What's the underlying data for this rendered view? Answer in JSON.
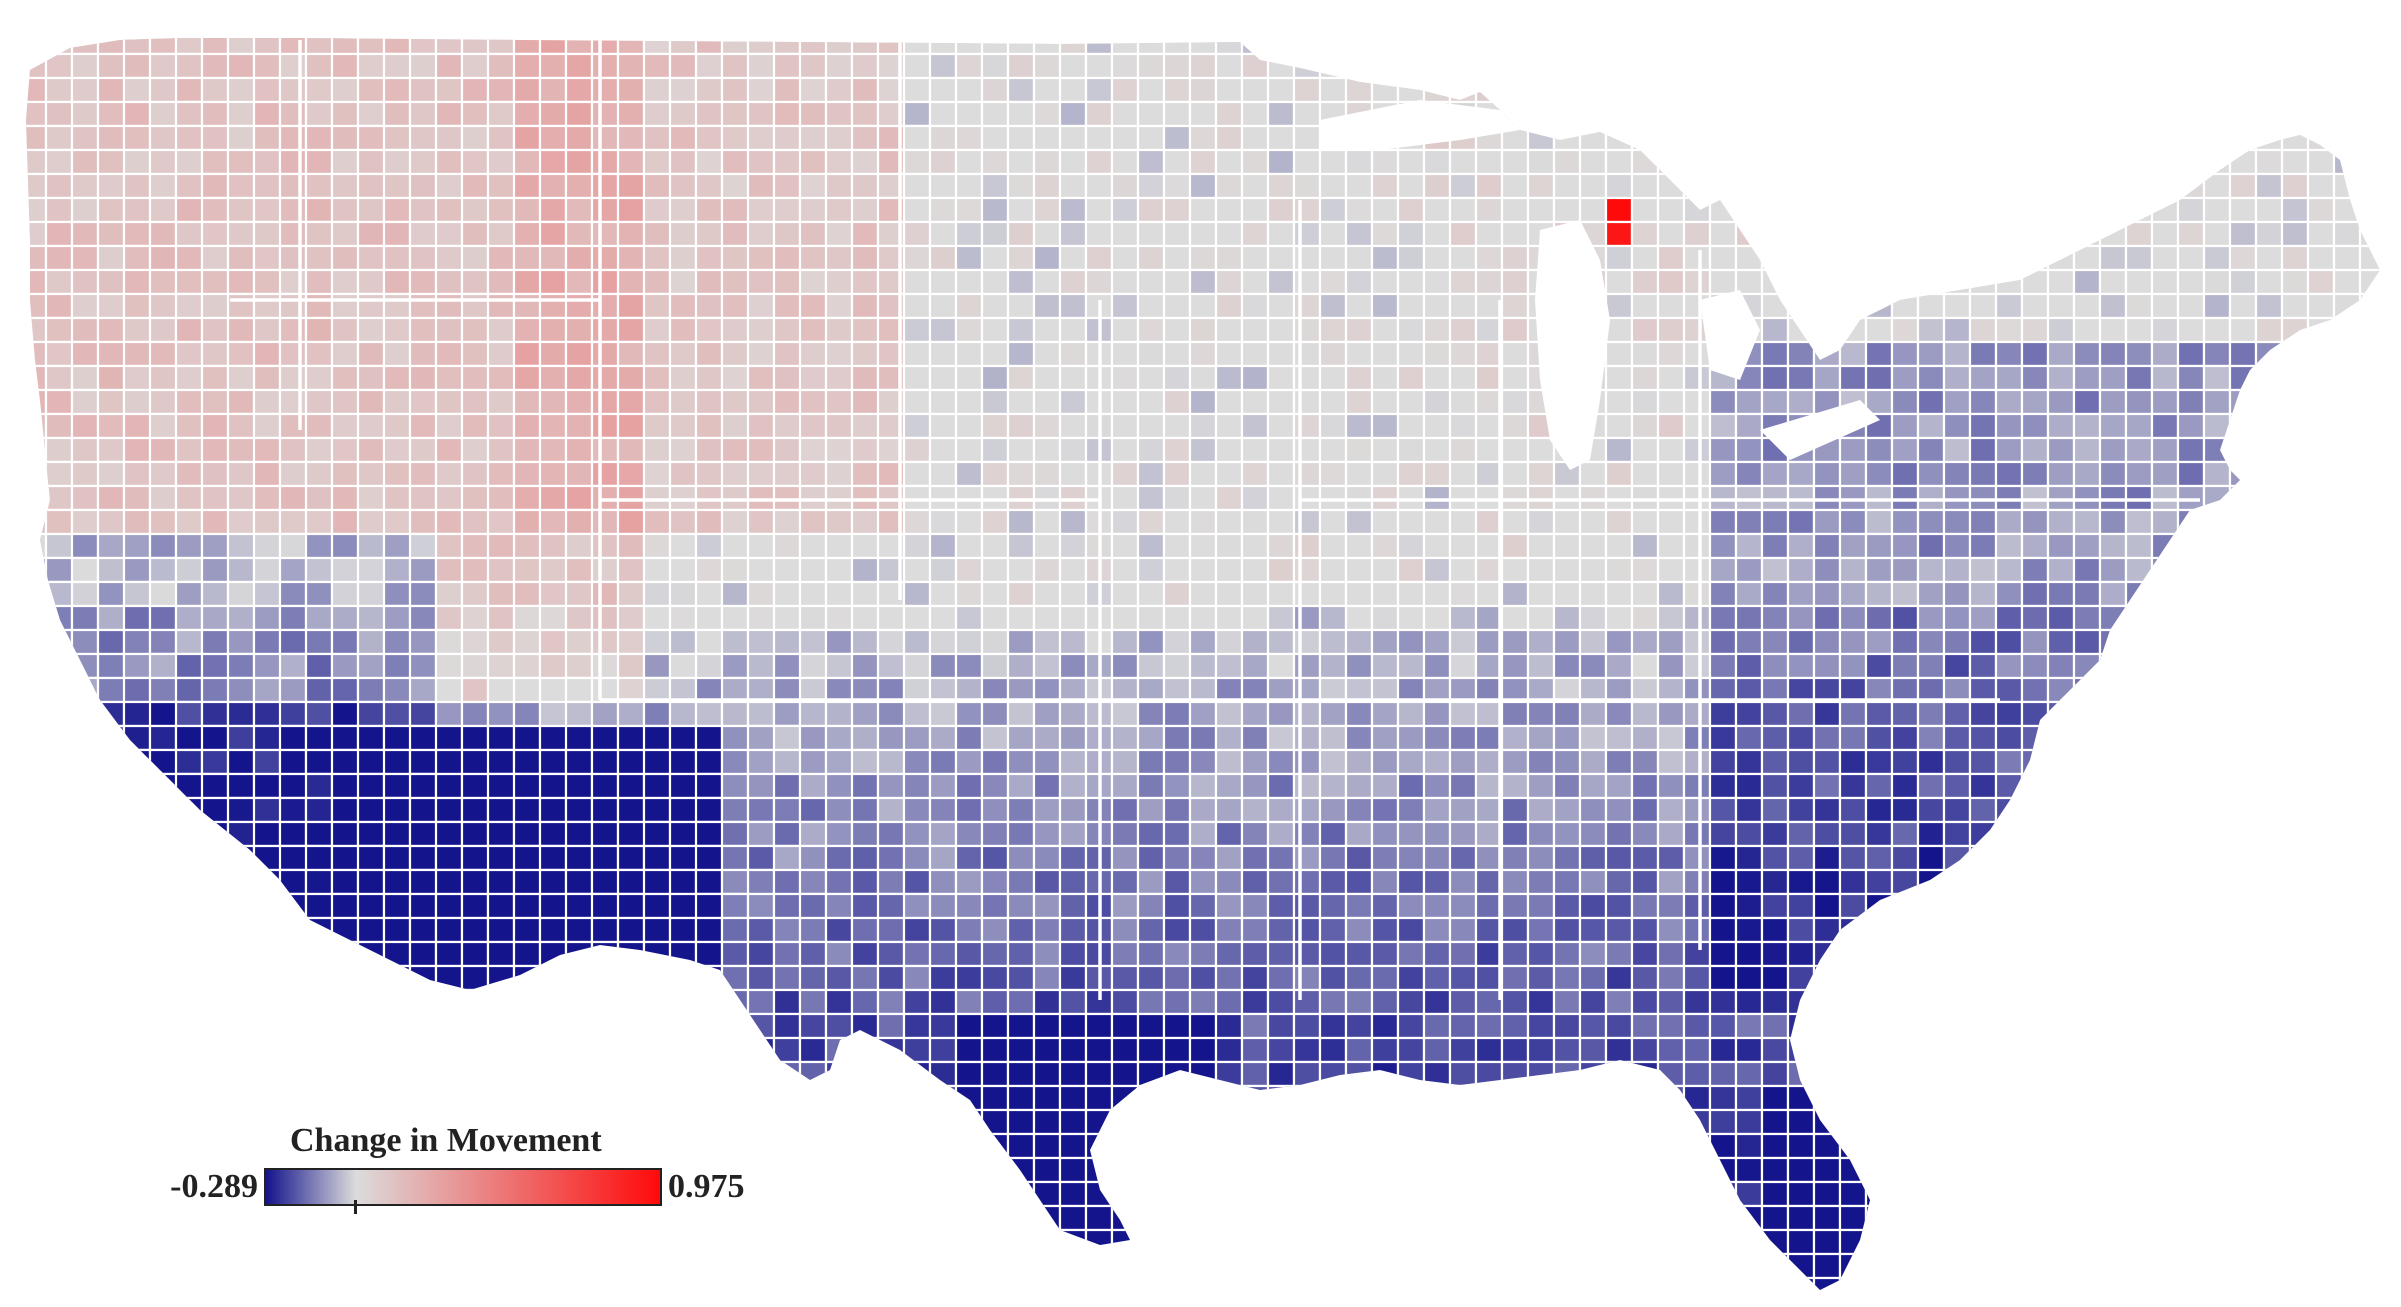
{
  "map": {
    "type": "choropleth",
    "region": "Contiguous United States",
    "unit": "county"
  },
  "legend": {
    "title": "Change in Movement",
    "min_label": "-0.289",
    "max_label": "0.975",
    "min_value": -0.289,
    "max_value": 0.975,
    "neutral_value": 0,
    "colors": {
      "low": "#14148c",
      "neutral": "#dcdcdc",
      "high": "#ff0a0a"
    }
  },
  "colors": {
    "background": "#ffffff",
    "border": "#ffffff",
    "no_change": "#dcdcdc"
  }
}
